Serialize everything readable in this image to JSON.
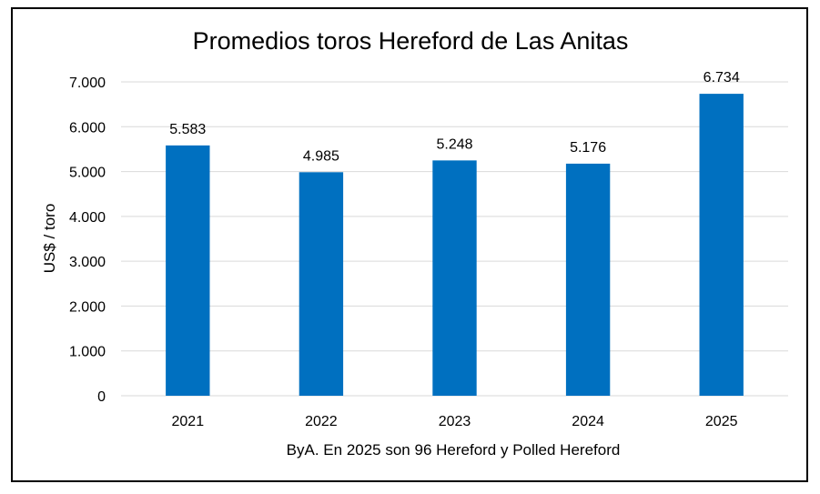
{
  "chart_data": {
    "type": "bar",
    "title": "Promedios toros Hereford de Las Anitas",
    "categories": [
      "2021",
      "2022",
      "2023",
      "2024",
      "2025"
    ],
    "values": [
      5583,
      4985,
      5248,
      5176,
      6734
    ],
    "value_labels": [
      "5.583",
      "4.985",
      "5.248",
      "5.176",
      "6.734"
    ],
    "ylabel": "US$ / toro",
    "xlabel": "",
    "ylim": [
      0,
      7000
    ],
    "yticks": [
      0,
      1000,
      2000,
      3000,
      4000,
      5000,
      6000,
      7000
    ],
    "ytick_labels": [
      "0",
      "1.000",
      "2.000",
      "3.000",
      "4.000",
      "5.000",
      "6.000",
      "7.000"
    ],
    "grid": true,
    "legend": "none",
    "bar_color": "#0070C0",
    "grid_color": "#D9D9D9",
    "note": "ByA. En 2025 son 96 Hereford y Polled Hereford"
  }
}
